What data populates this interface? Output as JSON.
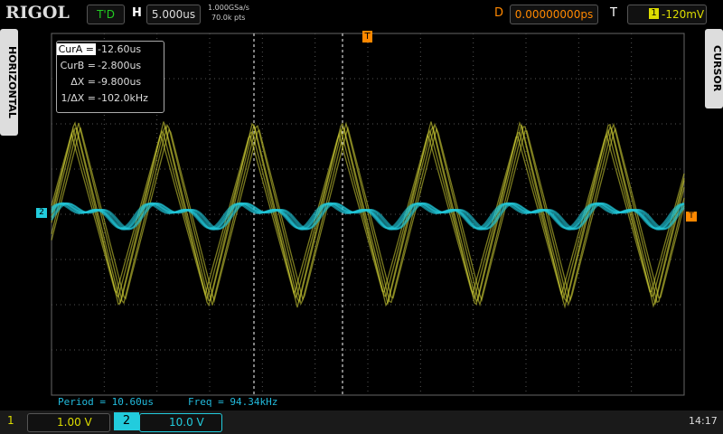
{
  "header": {
    "brand": "RIGOL",
    "status": "T'D",
    "timebase_label": "H",
    "timebase": "5.000us",
    "sample_rate": "1.000GSa/s",
    "memory_depth": "70.0k pts",
    "delay_label": "D",
    "delay": "0.00000000ps",
    "trigger_label": "T",
    "trigger_source": "1",
    "trigger_level": "-120mV"
  },
  "side_tabs": {
    "left": "HORIZONTAL",
    "right": "CURSOR"
  },
  "cursor_box": {
    "rows": [
      {
        "label": "CurA =",
        "value": "-12.60us"
      },
      {
        "label": "CurB =",
        "value": "-2.800us"
      },
      {
        "label": "ΔX =",
        "value": "-9.800us"
      },
      {
        "label": "1/ΔX =",
        "value": "-102.0kHz"
      }
    ]
  },
  "measurements": {
    "period": "Period = 10.60us",
    "freq": "Freq = 94.34kHz"
  },
  "markers": {
    "trigger_top": "T",
    "trigger_right": "T",
    "ch2": "2"
  },
  "channels": [
    {
      "number": "1",
      "scale": "1.00 V"
    },
    {
      "number": "2",
      "scale": "10.0 V"
    }
  ],
  "clock": "14:17"
}
